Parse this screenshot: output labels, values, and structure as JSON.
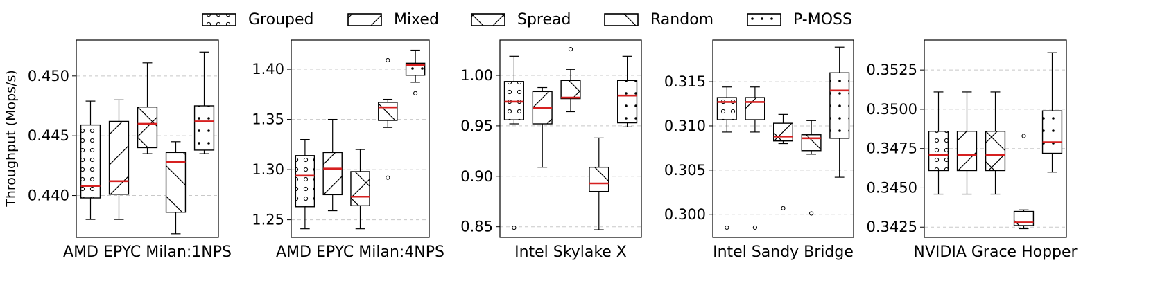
{
  "chart_data": {
    "type": "boxplot",
    "ylabel": "Throughput (Mops/s)",
    "legend": {
      "placement": "top-center",
      "entries": [
        {
          "name": "Grouped",
          "pattern": "circles"
        },
        {
          "name": "Mixed",
          "pattern": "diagonal-up"
        },
        {
          "name": "Spread",
          "pattern": "crosshatch"
        },
        {
          "name": "Random",
          "pattern": "diagonal-down"
        },
        {
          "name": "P-MOSS",
          "pattern": "dots"
        }
      ]
    },
    "colors": {
      "median": "#d62020",
      "grid": "#c8c8c8",
      "box_fill": "#ffffff"
    },
    "grid": true,
    "panels": [
      {
        "title": "AMD EPYC Milan:1NPS",
        "ylim": [
          0.4365,
          0.453
        ],
        "yticks": [
          0.44,
          0.445,
          0.45
        ],
        "ytick_labels": [
          "0.440",
          "0.445",
          "0.450"
        ],
        "boxes": [
          {
            "series": "Grouped",
            "min": 0.438,
            "q1": 0.4398,
            "median": 0.4408,
            "q3": 0.4459,
            "max": 0.4479,
            "fliers": []
          },
          {
            "series": "Mixed",
            "min": 0.438,
            "q1": 0.4401,
            "median": 0.4412,
            "q3": 0.4462,
            "max": 0.448,
            "fliers": []
          },
          {
            "series": "Spread",
            "min": 0.4435,
            "q1": 0.444,
            "median": 0.446,
            "q3": 0.4474,
            "max": 0.4511,
            "fliers": []
          },
          {
            "series": "Random",
            "min": 0.4368,
            "q1": 0.4386,
            "median": 0.4428,
            "q3": 0.4436,
            "max": 0.4445,
            "fliers": []
          },
          {
            "series": "P-MOSS",
            "min": 0.4435,
            "q1": 0.4438,
            "median": 0.4462,
            "q3": 0.4475,
            "max": 0.452,
            "fliers": []
          }
        ]
      },
      {
        "title": "AMD EPYC Milan:4NPS",
        "ylim": [
          1.2325,
          1.429
        ],
        "yticks": [
          1.25,
          1.3,
          1.35,
          1.4
        ],
        "ytick_labels": [
          "1.25",
          "1.30",
          "1.35",
          "1.40"
        ],
        "boxes": [
          {
            "series": "Grouped",
            "min": 1.241,
            "q1": 1.263,
            "median": 1.294,
            "q3": 1.314,
            "max": 1.33,
            "fliers": []
          },
          {
            "series": "Mixed",
            "min": 1.259,
            "q1": 1.275,
            "median": 1.301,
            "q3": 1.317,
            "max": 1.35,
            "fliers": []
          },
          {
            "series": "Spread",
            "min": 1.241,
            "q1": 1.264,
            "median": 1.273,
            "q3": 1.298,
            "max": 1.32,
            "fliers": []
          },
          {
            "series": "Random",
            "min": 1.342,
            "q1": 1.349,
            "median": 1.362,
            "q3": 1.367,
            "max": 1.37,
            "fliers": [
              1.409,
              1.292
            ]
          },
          {
            "series": "P-MOSS",
            "min": 1.387,
            "q1": 1.394,
            "median": 1.404,
            "q3": 1.406,
            "max": 1.419,
            "fliers": [
              1.376
            ]
          }
        ]
      },
      {
        "title": "Intel Skylake X",
        "ylim": [
          0.8395,
          1.035
        ],
        "yticks": [
          0.85,
          0.9,
          0.95,
          1.0
        ],
        "ytick_labels": [
          "0.85",
          "0.90",
          "0.95",
          "1.00"
        ],
        "boxes": [
          {
            "series": "Grouped",
            "min": 0.952,
            "q1": 0.956,
            "median": 0.974,
            "q3": 0.994,
            "max": 1.019,
            "fliers": [
              0.849
            ]
          },
          {
            "series": "Mixed",
            "min": 0.909,
            "q1": 0.952,
            "median": 0.968,
            "q3": 0.984,
            "max": 0.988,
            "fliers": []
          },
          {
            "series": "Spread",
            "min": 0.964,
            "q1": 0.977,
            "median": 0.978,
            "q3": 0.995,
            "max": 1.006,
            "fliers": [
              1.026
            ]
          },
          {
            "series": "Random",
            "min": 0.847,
            "q1": 0.885,
            "median": 0.893,
            "q3": 0.909,
            "max": 0.938,
            "fliers": []
          },
          {
            "series": "P-MOSS",
            "min": 0.949,
            "q1": 0.953,
            "median": 0.98,
            "q3": 0.995,
            "max": 1.019,
            "fliers": []
          }
        ]
      },
      {
        "title": "Intel Sandy Bridge",
        "ylim": [
          0.2974,
          0.3197
        ],
        "yticks": [
          0.3,
          0.305,
          0.31,
          0.315
        ],
        "ytick_labels": [
          "0.300",
          "0.305",
          "0.310",
          "0.315"
        ],
        "boxes": [
          {
            "series": "Grouped",
            "min": 0.3093,
            "q1": 0.3107,
            "median": 0.3127,
            "q3": 0.3132,
            "max": 0.3144,
            "fliers": [
              0.2985
            ]
          },
          {
            "series": "Mixed",
            "min": 0.3093,
            "q1": 0.3107,
            "median": 0.3127,
            "q3": 0.3132,
            "max": 0.3144,
            "fliers": [
              0.2985
            ]
          },
          {
            "series": "Spread",
            "min": 0.308,
            "q1": 0.3083,
            "median": 0.3088,
            "q3": 0.3103,
            "max": 0.3113,
            "fliers": [
              0.3007
            ]
          },
          {
            "series": "Random",
            "min": 0.3068,
            "q1": 0.3072,
            "median": 0.3086,
            "q3": 0.309,
            "max": 0.3106,
            "fliers": [
              0.3001
            ]
          },
          {
            "series": "P-MOSS",
            "min": 0.3042,
            "q1": 0.3086,
            "median": 0.314,
            "q3": 0.316,
            "max": 0.3189,
            "fliers": []
          }
        ]
      },
      {
        "title": "NVIDIA Grace Hopper",
        "ylim": [
          0.34185,
          0.3544
        ],
        "yticks": [
          0.3425,
          0.345,
          0.3475,
          0.35,
          0.3525
        ],
        "ytick_labels": [
          "0.3425",
          "0.3450",
          "0.3475",
          "0.3500",
          "0.3525"
        ],
        "boxes": [
          {
            "series": "Grouped",
            "min": 0.3446,
            "q1": 0.3461,
            "median": 0.3471,
            "q3": 0.3486,
            "max": 0.3511,
            "fliers": []
          },
          {
            "series": "Mixed",
            "min": 0.3446,
            "q1": 0.3461,
            "median": 0.3471,
            "q3": 0.3486,
            "max": 0.3511,
            "fliers": []
          },
          {
            "series": "Spread",
            "min": 0.3446,
            "q1": 0.3461,
            "median": 0.3471,
            "q3": 0.3486,
            "max": 0.3511,
            "fliers": []
          },
          {
            "series": "Random",
            "min": 0.3424,
            "q1": 0.3426,
            "median": 0.3428,
            "q3": 0.3435,
            "max": 0.3436,
            "fliers": [
              0.3483
            ]
          },
          {
            "series": "P-MOSS",
            "min": 0.346,
            "q1": 0.3472,
            "median": 0.3479,
            "q3": 0.3499,
            "max": 0.3536,
            "fliers": []
          }
        ]
      }
    ]
  }
}
